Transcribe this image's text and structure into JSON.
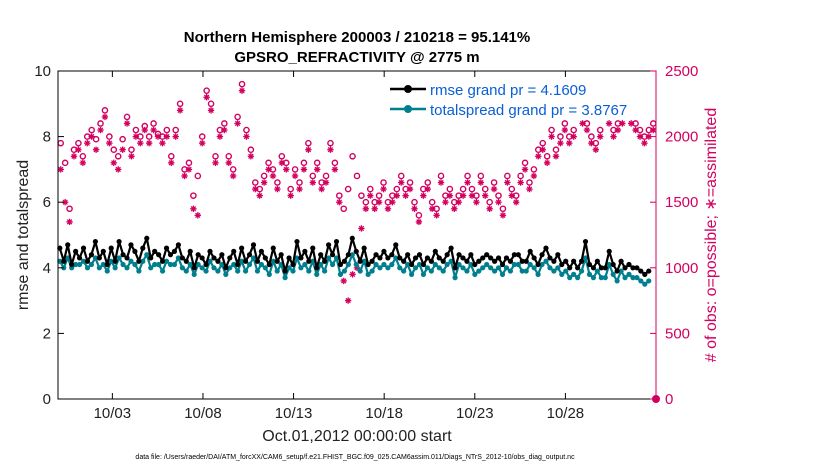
{
  "chart_data": {
    "type": "line",
    "title_line1": "Northern Hemisphere 200003 / 210218 = 95.141%",
    "title_line2": "GPSRO_REFRACTIVITY @ 2775 m",
    "xlabel": "Oct.01,2012 00:00:00 start",
    "ylabel_left": "rmse and totalspread",
    "ylabel_right": "# of obs: o=possible; ∗=assimilated",
    "xlim": [
      0,
      33
    ],
    "ylim_left": [
      0,
      10
    ],
    "ylim_right": [
      0,
      2500
    ],
    "x_ticks": [
      {
        "value": 3,
        "label": "10/03"
      },
      {
        "value": 8,
        "label": "10/08"
      },
      {
        "value": 13,
        "label": "10/13"
      },
      {
        "value": 18,
        "label": "10/18"
      },
      {
        "value": 23,
        "label": "10/23"
      },
      {
        "value": 28,
        "label": "10/28"
      }
    ],
    "y_ticks_left": [
      "0",
      "2",
      "4",
      "6",
      "8",
      "10"
    ],
    "y_ticks_right": [
      "0",
      "500",
      "1000",
      "1500",
      "2000",
      "2500"
    ],
    "legend": [
      {
        "label": "rmse grand pr = 4.1609",
        "color": "#000000"
      },
      {
        "label": "totalspread grand pr = 3.8767",
        "color": "#00808f"
      }
    ],
    "footer": "data file: /Users/raeder/DAI/ATM_forcXX/CAM6_setup/f.e21.FHIST_BGC.f09_025.CAM6assim.011/Diags_NTrS_2012-10/obs_diag_output.nc",
    "colors": {
      "rmse": "#000000",
      "spread": "#00808f",
      "obs": "#d3005f",
      "legend_text": "#0a5fd6"
    },
    "series": [
      {
        "name": "rmse",
        "axis": "left",
        "values": [
          4.6,
          4.2,
          4.7,
          4.1,
          4.5,
          4.3,
          4.6,
          4.2,
          4.4,
          4.8,
          4.3,
          4.5,
          4.1,
          4.6,
          4.2,
          4.8,
          4.4,
          4.3,
          4.7,
          4.5,
          4.2,
          4.6,
          4.9,
          4.3,
          4.5,
          4.4,
          4.2,
          4.6,
          4.4,
          4.5,
          4.7,
          4.3,
          4.2,
          4.5,
          4.0,
          4.4,
          4.3,
          4.1,
          4.5,
          4.3,
          4.2,
          4.4,
          4.0,
          4.3,
          4.5,
          4.1,
          4.6,
          4.2,
          4.4,
          4.7,
          4.2,
          4.5,
          4.3,
          4.1,
          4.6,
          4.2,
          4.4,
          3.9,
          4.3,
          4.1,
          4.8,
          4.3,
          4.5,
          4.2,
          4.6,
          4.0,
          4.4,
          4.2,
          4.7,
          4.4,
          4.8,
          4.1,
          4.2,
          4.4,
          4.9,
          4.5,
          4.2,
          4.6,
          4.1,
          4.2,
          4.4,
          4.3,
          4.5,
          4.3,
          4.4,
          4.7,
          4.3,
          4.2,
          4.4,
          4.1,
          4.3,
          4.4,
          4.1,
          4.3,
          4.2,
          4.5,
          4.3,
          4.2,
          4.4,
          4.6,
          4.0,
          4.4,
          4.3,
          4.2,
          4.4,
          4.1,
          4.2,
          4.3,
          4.4,
          4.3,
          4.2,
          4.3,
          4.1,
          4.3,
          4.2,
          4.4,
          4.4,
          4.2,
          4.2,
          4.5,
          4.3,
          4.1,
          4.4,
          4.6,
          4.3,
          4.2,
          4.4,
          4.1,
          4.2,
          4.0,
          4.2,
          4.0,
          4.2,
          4.8,
          4.1,
          4.0,
          4.2,
          4.0,
          4.0,
          4.5,
          4.1,
          3.9,
          4.2,
          4.0,
          4.1,
          4.0,
          4.0,
          3.9,
          3.8,
          3.9
        ]
      },
      {
        "name": "totalspread",
        "axis": "left",
        "values": [
          4.2,
          4.0,
          4.3,
          4.0,
          4.1,
          4.1,
          4.2,
          4.0,
          4.1,
          4.3,
          4.0,
          4.1,
          3.9,
          4.2,
          4.0,
          4.3,
          4.1,
          4.0,
          4.2,
          4.1,
          3.9,
          4.2,
          4.4,
          4.0,
          4.1,
          4.1,
          3.9,
          4.2,
          4.1,
          4.1,
          4.3,
          4.0,
          3.9,
          4.1,
          3.8,
          4.1,
          4.0,
          3.9,
          4.2,
          4.0,
          3.9,
          4.1,
          3.8,
          4.0,
          4.1,
          3.9,
          4.2,
          3.9,
          4.1,
          4.3,
          3.9,
          4.1,
          4.0,
          3.8,
          4.2,
          3.9,
          4.1,
          3.7,
          4.0,
          3.9,
          4.3,
          4.0,
          4.1,
          3.9,
          4.2,
          3.8,
          4.1,
          3.9,
          4.3,
          4.1,
          4.3,
          3.8,
          3.9,
          4.1,
          4.4,
          4.1,
          3.9,
          4.2,
          3.8,
          3.9,
          4.1,
          4.0,
          4.1,
          4.0,
          4.1,
          4.3,
          4.0,
          3.9,
          4.1,
          3.8,
          4.0,
          4.1,
          3.8,
          4.0,
          3.9,
          4.1,
          4.0,
          3.9,
          4.1,
          4.2,
          3.7,
          4.1,
          4.0,
          3.9,
          4.1,
          3.8,
          3.9,
          4.0,
          4.1,
          4.0,
          3.9,
          4.0,
          3.8,
          4.0,
          3.9,
          4.1,
          4.1,
          3.9,
          3.9,
          4.1,
          4.0,
          3.8,
          4.1,
          4.2,
          4.0,
          3.9,
          4.0,
          3.8,
          3.9,
          3.7,
          3.8,
          3.7,
          3.9,
          4.3,
          3.8,
          3.7,
          3.9,
          3.7,
          3.7,
          4.1,
          3.8,
          3.6,
          3.9,
          3.7,
          3.8,
          3.7,
          3.7,
          3.6,
          3.5,
          3.6
        ]
      },
      {
        "name": "obs possible",
        "axis": "right",
        "values": [
          1950,
          1800,
          1450,
          1900,
          1950,
          1850,
          2000,
          2050,
          1980,
          2100,
          2200,
          2000,
          1900,
          1850,
          1980,
          2150,
          1900,
          2050,
          2000,
          2080,
          2000,
          2100,
          2020,
          2000,
          2050,
          1850,
          2050,
          2250,
          1750,
          1800,
          1550,
          1700,
          2000,
          2350,
          2250,
          1850,
          2050,
          2100,
          1850,
          1750,
          2150,
          2400,
          2050,
          1900,
          1650,
          1600,
          1700,
          1800,
          1750,
          1650,
          1850,
          1800,
          1600,
          1750,
          1650,
          1800,
          1950,
          1700,
          1800,
          1650,
          1700,
          1950,
          1800,
          1550,
          1450,
          1600,
          1850,
          1700,
          1550,
          1500,
          1600,
          1500,
          1550,
          1650,
          1500,
          1550,
          1600,
          1700,
          1600,
          1650,
          1500,
          1400,
          1600,
          1650,
          1500,
          1450,
          1700,
          1550,
          1600,
          1500,
          1550,
          1600,
          1700,
          1600,
          1550,
          1700,
          1600,
          1500,
          1650,
          1550,
          1450,
          1700,
          1600,
          1550,
          1700,
          1800,
          1650,
          1750,
          1900,
          1950,
          1850,
          2050,
          1900,
          2000,
          2100,
          2000,
          2050,
          2200,
          2150,
          2100,
          2000,
          1950,
          2050,
          2250,
          2150,
          2050,
          2100,
          2150,
          2250,
          2150,
          2100,
          2050,
          2000,
          2050,
          2100
        ]
      },
      {
        "name": "obs assimilated",
        "axis": "right",
        "values": [
          1750,
          1500,
          1350,
          1850,
          1900,
          1800,
          1950,
          2000,
          1900,
          2050,
          2150,
          1950,
          1800,
          1750,
          1900,
          2100,
          1850,
          2000,
          1950,
          2050,
          1950,
          2050,
          2000,
          1950,
          2000,
          1800,
          2000,
          2200,
          1700,
          1750,
          1450,
          1400,
          1950,
          2300,
          2200,
          1800,
          2000,
          2050,
          1800,
          1700,
          2100,
          2350,
          2000,
          1850,
          1600,
          1550,
          1650,
          1750,
          1700,
          1600,
          1800,
          1750,
          1550,
          1700,
          1600,
          1750,
          1900,
          1650,
          1750,
          1600,
          1650,
          1900,
          1750,
          1500,
          900,
          750,
          950,
          1000,
          1300,
          1450,
          1550,
          1450,
          1500,
          1600,
          1450,
          1500,
          1550,
          1650,
          1550,
          1600,
          1450,
          1350,
          1550,
          1600,
          1450,
          1400,
          1650,
          1500,
          1550,
          1450,
          1500,
          1550,
          1650,
          1550,
          1500,
          1650,
          1550,
          1450,
          1600,
          1500,
          1400,
          1650,
          1550,
          1500,
          1650,
          1750,
          1600,
          1700,
          1850,
          1900,
          1800,
          2000,
          1850,
          1950,
          2050,
          1950,
          2000,
          2150,
          2100,
          2050,
          1950,
          1900,
          2000,
          2200,
          2100,
          2000,
          2050,
          2100,
          2200,
          2100,
          2050,
          2000,
          1950,
          2000,
          2050
        ]
      }
    ]
  }
}
